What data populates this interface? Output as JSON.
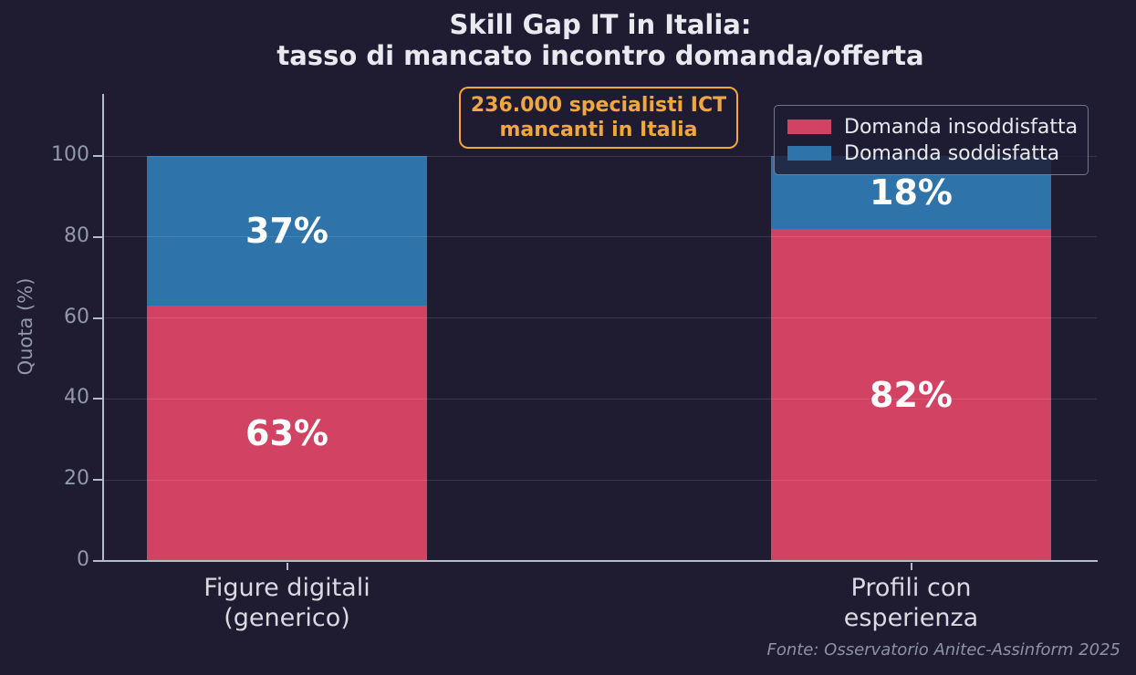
{
  "title": {
    "line1": "Skill Gap IT in Italia:",
    "line2": "tasso di mancato incontro domanda/offerta"
  },
  "annotation": {
    "line1": "236.000 specialisti ICT",
    "line2": "mancanti in Italia",
    "color": "#f0a73f"
  },
  "legend": {
    "items": [
      {
        "label": "Domanda insoddisfatta",
        "color": "#d24363"
      },
      {
        "label": "Domanda soddisfatta",
        "color": "#2e74ab"
      }
    ]
  },
  "axes": {
    "y_label": "Quota (%)"
  },
  "footer": "Fonte: Osservatorio Anitec-Assinform 2025",
  "chart_data": {
    "type": "bar",
    "stacked": true,
    "title": "Skill Gap IT in Italia: tasso di mancato incontro domanda/offerta",
    "categories": [
      "Figure digitali (generico)",
      "Profili con esperienza"
    ],
    "category_labels": [
      [
        "Figure digitali",
        "(generico)"
      ],
      [
        "Profili con",
        "esperienza"
      ]
    ],
    "series": [
      {
        "name": "Domanda insoddisfatta",
        "color": "#d24363",
        "values": [
          63,
          82
        ],
        "labels": [
          "63%",
          "82%"
        ]
      },
      {
        "name": "Domanda soddisfatta",
        "color": "#2e74ab",
        "values": [
          37,
          18
        ],
        "labels": [
          "37%",
          "18%"
        ]
      }
    ],
    "ylabel": "Quota (%)",
    "ylim": [
      0,
      100
    ],
    "y_ticks": [
      0,
      20,
      40,
      60,
      80,
      100
    ],
    "grid": true,
    "legend_position": "upper right",
    "annotation": "236.000 specialisti ICT mancanti in Italia",
    "source": "Fonte: Osservatorio Anitec-Assinform 2025",
    "background_color": "#1f1c32"
  }
}
